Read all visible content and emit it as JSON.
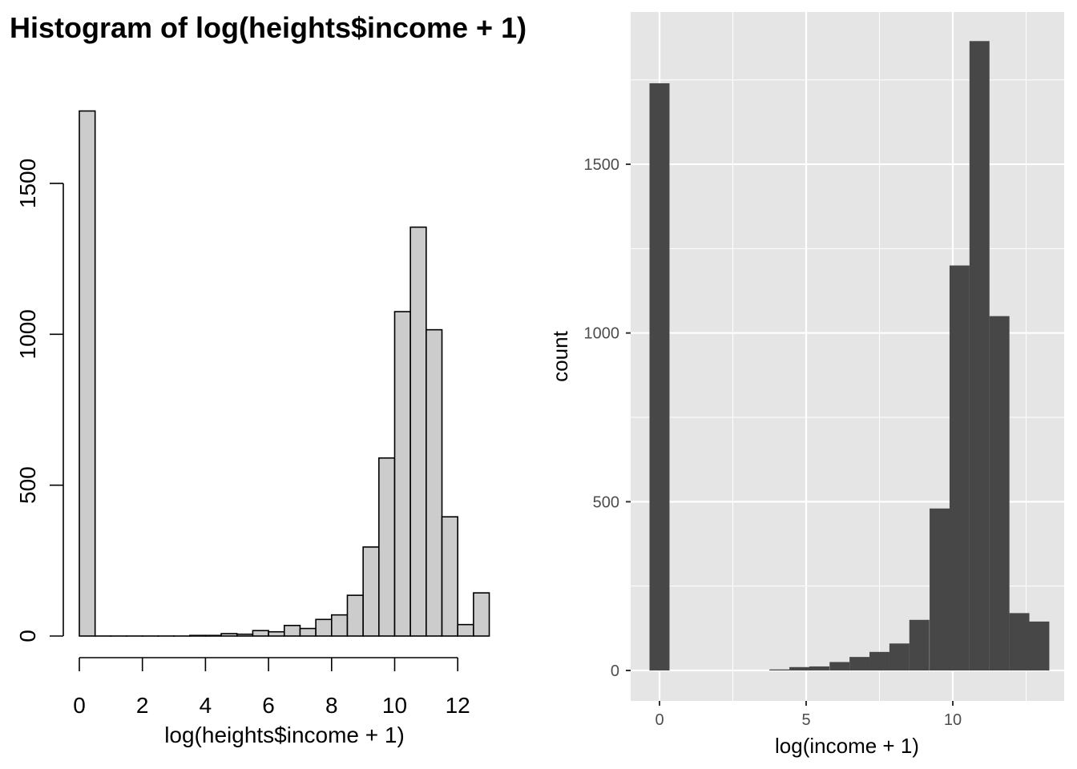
{
  "chart_data": [
    {
      "type": "bar",
      "style": "base-r-histogram",
      "title": "Histogram of log(heights$income + 1)",
      "xlabel": "log(heights$income + 1)",
      "ylabel": "",
      "bin_width": 0.5,
      "x_ticks": [
        0,
        2,
        4,
        6,
        8,
        10,
        12
      ],
      "y_ticks": [
        0,
        500,
        1000,
        1500
      ],
      "xlim": [
        0,
        13
      ],
      "ylim": [
        0,
        1740
      ],
      "bins": [
        {
          "x0": 0.0,
          "count": 1740
        },
        {
          "x0": 0.5,
          "count": 0
        },
        {
          "x0": 1.0,
          "count": 0
        },
        {
          "x0": 1.5,
          "count": 0
        },
        {
          "x0": 2.0,
          "count": 0
        },
        {
          "x0": 2.5,
          "count": 0
        },
        {
          "x0": 3.0,
          "count": 0
        },
        {
          "x0": 3.5,
          "count": 2
        },
        {
          "x0": 4.0,
          "count": 2
        },
        {
          "x0": 4.5,
          "count": 8
        },
        {
          "x0": 5.0,
          "count": 6
        },
        {
          "x0": 5.5,
          "count": 18
        },
        {
          "x0": 6.0,
          "count": 14
        },
        {
          "x0": 6.5,
          "count": 35
        },
        {
          "x0": 7.0,
          "count": 25
        },
        {
          "x0": 7.5,
          "count": 55
        },
        {
          "x0": 8.0,
          "count": 70
        },
        {
          "x0": 8.5,
          "count": 135
        },
        {
          "x0": 9.0,
          "count": 295
        },
        {
          "x0": 9.5,
          "count": 590
        },
        {
          "x0": 10.0,
          "count": 1075
        },
        {
          "x0": 10.5,
          "count": 1355
        },
        {
          "x0": 11.0,
          "count": 1015
        },
        {
          "x0": 11.5,
          "count": 395
        },
        {
          "x0": 12.0,
          "count": 38
        },
        {
          "x0": 12.5,
          "count": 143
        }
      ],
      "colors": {
        "bar_fill": "#cccccc",
        "bar_stroke": "#000000"
      }
    },
    {
      "type": "bar",
      "style": "ggplot2-histogram",
      "title": "",
      "xlabel": "log(income + 1)",
      "ylabel": "count",
      "bin_width": 0.6818,
      "x_ticks": [
        0,
        5,
        10
      ],
      "y_ticks": [
        0,
        500,
        1000,
        1500
      ],
      "x_minor_breaks": [
        2.5,
        7.5,
        12.5
      ],
      "y_minor_breaks": [
        250,
        750,
        1250,
        1750
      ],
      "xlim": [
        -0.98,
        13.85
      ],
      "ylim": [
        -90,
        1940
      ],
      "grid": true,
      "bins": [
        {
          "center": 0.0,
          "count": 1740
        },
        {
          "center": 4.09,
          "count": 3
        },
        {
          "center": 4.77,
          "count": 10
        },
        {
          "center": 5.45,
          "count": 12
        },
        {
          "center": 6.14,
          "count": 25
        },
        {
          "center": 6.82,
          "count": 40
        },
        {
          "center": 7.5,
          "count": 55
        },
        {
          "center": 8.18,
          "count": 80
        },
        {
          "center": 8.86,
          "count": 150
        },
        {
          "center": 9.55,
          "count": 480
        },
        {
          "center": 10.23,
          "count": 1200
        },
        {
          "center": 10.91,
          "count": 1865
        },
        {
          "center": 11.59,
          "count": 1050
        },
        {
          "center": 12.27,
          "count": 170
        },
        {
          "center": 12.95,
          "count": 145
        }
      ],
      "colors": {
        "panel_bg": "#e5e5e5",
        "grid": "#ffffff",
        "bar_fill": "#474747",
        "tick": "#333333"
      }
    }
  ]
}
